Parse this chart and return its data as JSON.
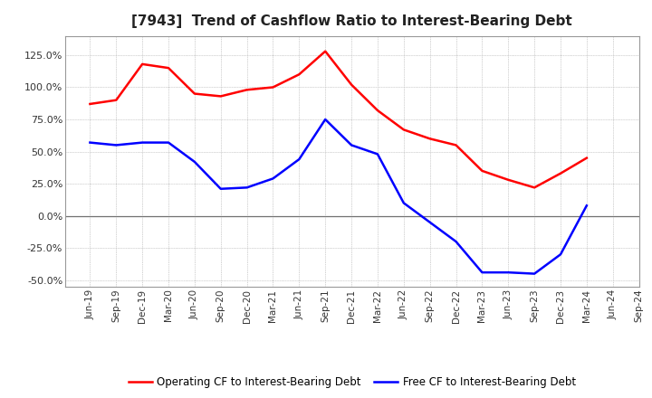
{
  "title": "[7943]  Trend of Cashflow Ratio to Interest-Bearing Debt",
  "x_labels": [
    "Jun-19",
    "Sep-19",
    "Dec-19",
    "Mar-20",
    "Jun-20",
    "Sep-20",
    "Dec-20",
    "Mar-21",
    "Jun-21",
    "Sep-21",
    "Dec-21",
    "Mar-22",
    "Jun-22",
    "Sep-22",
    "Dec-22",
    "Mar-23",
    "Jun-23",
    "Sep-23",
    "Dec-23",
    "Mar-24",
    "Jun-24",
    "Sep-24"
  ],
  "operating_cf": [
    87,
    90,
    118,
    115,
    95,
    93,
    98,
    100,
    110,
    128,
    102,
    82,
    67,
    60,
    55,
    35,
    28,
    22,
    33,
    45,
    null,
    null
  ],
  "free_cf": [
    57,
    55,
    57,
    57,
    42,
    21,
    22,
    29,
    44,
    75,
    55,
    48,
    10,
    -5,
    -20,
    -44,
    -44,
    -45,
    -30,
    8,
    null,
    null
  ],
  "operating_color": "#ff0000",
  "free_color": "#0000ff",
  "ylim_min": -55,
  "ylim_max": 140,
  "yticks": [
    -50,
    -25,
    0,
    25,
    50,
    75,
    100,
    125
  ],
  "background_color": "#ffffff",
  "grid_color": "#b0b0b0",
  "zero_line_color": "#707070",
  "legend_op": "Operating CF to Interest-Bearing Debt",
  "legend_free": "Free CF to Interest-Bearing Debt",
  "title_fontsize": 11,
  "tick_fontsize": 8,
  "legend_fontsize": 8.5
}
